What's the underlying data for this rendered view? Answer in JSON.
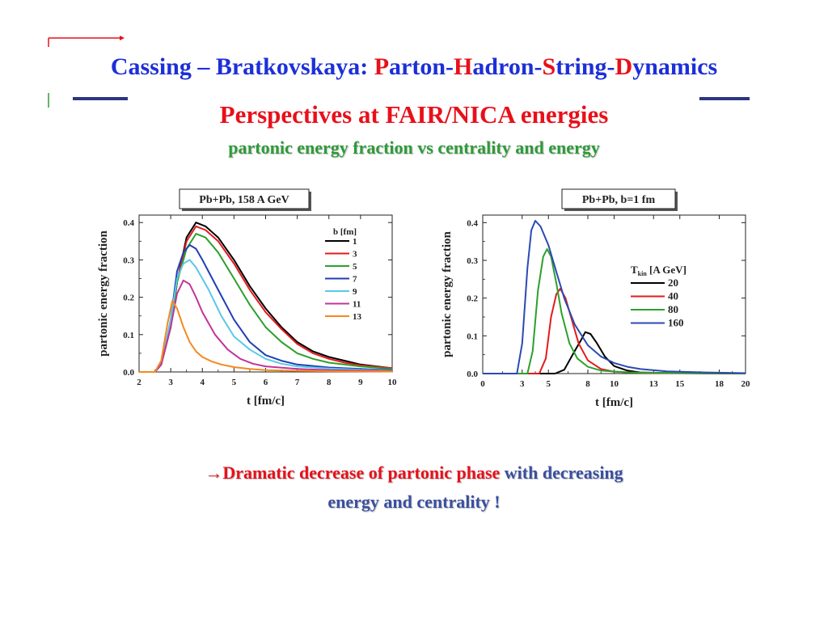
{
  "title": {
    "prefix": "Cassing – Bratkovskaya: ",
    "parts": [
      {
        "initial": "P",
        "rest": "arton-"
      },
      {
        "initial": "H",
        "rest": "adron-"
      },
      {
        "initial": "S",
        "rest": "tring-"
      },
      {
        "initial": "D",
        "rest": "ynamics"
      }
    ]
  },
  "subtitle1": "Perspectives at FAIR/NICA energies",
  "subtitle2": "partonic energy fraction vs centrality and energy",
  "conclusion": {
    "arrow": "→",
    "red": "Dramatic decrease of partonic phase",
    "blue": " with decreasing",
    "line2": "energy  and centrality !"
  },
  "colors": {
    "title_blue": "#1c2fd8",
    "title_red": "#e8101a",
    "green": "#2f9a3a",
    "dark_blue": "#3a4fa0"
  },
  "chart_data": [
    {
      "type": "line",
      "title": "Pb+Pb,  158 A GeV",
      "xlabel": "t [fm/c]",
      "ylabel": "partonic energy fraction",
      "xlim": [
        2,
        10
      ],
      "ylim": [
        0,
        0.42
      ],
      "xticks": [
        2,
        3,
        4,
        5,
        6,
        7,
        8,
        9,
        10
      ],
      "yticks": [
        0.0,
        0.1,
        0.2,
        0.3,
        0.4
      ],
      "legend_title": "b [fm]",
      "legend_position": "right",
      "series": [
        {
          "name": "1",
          "color": "#000000",
          "x": [
            2.0,
            2.5,
            2.7,
            3.0,
            3.2,
            3.5,
            3.8,
            4.1,
            4.5,
            5.0,
            5.5,
            6.0,
            6.5,
            7.0,
            7.5,
            8.0,
            8.5,
            9.0,
            10.0
          ],
          "y": [
            0.0,
            0.0,
            0.02,
            0.12,
            0.24,
            0.36,
            0.4,
            0.39,
            0.36,
            0.3,
            0.23,
            0.17,
            0.12,
            0.08,
            0.055,
            0.04,
            0.03,
            0.02,
            0.01
          ]
        },
        {
          "name": "3",
          "color": "#e31a1c",
          "x": [
            2.0,
            2.5,
            2.7,
            3.0,
            3.2,
            3.5,
            3.8,
            4.1,
            4.5,
            5.0,
            5.5,
            6.0,
            6.5,
            7.0,
            7.5,
            8.0,
            8.5,
            9.0,
            10.0
          ],
          "y": [
            0.0,
            0.0,
            0.02,
            0.12,
            0.24,
            0.35,
            0.39,
            0.38,
            0.35,
            0.29,
            0.22,
            0.16,
            0.115,
            0.075,
            0.05,
            0.035,
            0.025,
            0.018,
            0.01
          ]
        },
        {
          "name": "5",
          "color": "#2ca02c",
          "x": [
            2.0,
            2.5,
            2.7,
            3.0,
            3.2,
            3.5,
            3.8,
            4.1,
            4.5,
            5.0,
            5.5,
            6.0,
            6.5,
            7.0,
            7.5,
            8.0,
            9.0,
            10.0
          ],
          "y": [
            0.0,
            0.0,
            0.02,
            0.12,
            0.24,
            0.33,
            0.37,
            0.36,
            0.32,
            0.25,
            0.18,
            0.12,
            0.08,
            0.05,
            0.035,
            0.025,
            0.015,
            0.008
          ]
        },
        {
          "name": "7",
          "color": "#1f3fb4",
          "x": [
            2.0,
            2.5,
            2.7,
            3.0,
            3.2,
            3.4,
            3.6,
            3.8,
            4.0,
            4.5,
            5.0,
            5.5,
            6.0,
            6.5,
            7.0,
            8.0,
            9.0,
            10.0
          ],
          "y": [
            0.0,
            0.0,
            0.02,
            0.14,
            0.27,
            0.32,
            0.34,
            0.33,
            0.3,
            0.22,
            0.14,
            0.08,
            0.045,
            0.03,
            0.02,
            0.012,
            0.008,
            0.005
          ]
        },
        {
          "name": "9",
          "color": "#5bc8e6",
          "x": [
            2.0,
            2.5,
            2.7,
            3.0,
            3.2,
            3.4,
            3.6,
            3.8,
            4.2,
            4.6,
            5.0,
            5.5,
            6.0,
            6.5,
            7.0,
            8.0,
            9.0,
            10.0
          ],
          "y": [
            0.0,
            0.0,
            0.02,
            0.14,
            0.25,
            0.29,
            0.3,
            0.28,
            0.22,
            0.15,
            0.095,
            0.06,
            0.035,
            0.022,
            0.015,
            0.009,
            0.006,
            0.004
          ]
        },
        {
          "name": "11",
          "color": "#c0359a",
          "x": [
            2.0,
            2.5,
            2.7,
            3.0,
            3.2,
            3.4,
            3.6,
            3.8,
            4.0,
            4.4,
            4.8,
            5.2,
            5.6,
            6.0,
            7.0,
            8.0,
            9.0,
            10.0
          ],
          "y": [
            0.0,
            0.0,
            0.02,
            0.12,
            0.21,
            0.245,
            0.235,
            0.2,
            0.16,
            0.1,
            0.06,
            0.035,
            0.022,
            0.015,
            0.008,
            0.005,
            0.004,
            0.003
          ]
        },
        {
          "name": "13",
          "color": "#f5891f",
          "x": [
            2.0,
            2.5,
            2.7,
            2.9,
            3.05,
            3.2,
            3.4,
            3.6,
            3.8,
            4.0,
            4.3,
            4.6,
            5.0,
            5.5,
            6.0,
            7.0,
            8.0,
            10.0
          ],
          "y": [
            0.0,
            0.0,
            0.03,
            0.13,
            0.19,
            0.17,
            0.12,
            0.08,
            0.055,
            0.04,
            0.028,
            0.02,
            0.013,
            0.008,
            0.005,
            0.003,
            0.002,
            0.001
          ]
        }
      ]
    },
    {
      "type": "line",
      "title": "Pb+Pb, b=1 fm",
      "xlabel": "t [fm/c]",
      "ylabel": "partonic energy fraction",
      "xlim": [
        0,
        20
      ],
      "ylim": [
        0,
        0.42
      ],
      "xticks": [
        0,
        3,
        5,
        8,
        10,
        13,
        15,
        18,
        20
      ],
      "yticks": [
        0.0,
        0.1,
        0.2,
        0.3,
        0.4
      ],
      "legend_title": "T",
      "legend_title_sub": "kin",
      "legend_title_rest": " [A GeV]",
      "legend_position": "right",
      "series": [
        {
          "name": "20",
          "color": "#000000",
          "x": [
            0,
            5.5,
            6.2,
            7.0,
            7.5,
            7.8,
            8.2,
            8.7,
            9.3,
            10.0,
            11.0,
            12.0,
            14.0,
            20.0
          ],
          "y": [
            0.0,
            0.0,
            0.01,
            0.06,
            0.09,
            0.11,
            0.105,
            0.08,
            0.045,
            0.02,
            0.008,
            0.003,
            0.001,
            0.0
          ]
        },
        {
          "name": "40",
          "color": "#e31a1c",
          "x": [
            0,
            4.3,
            4.8,
            5.2,
            5.6,
            5.9,
            6.3,
            6.8,
            7.3,
            8.0,
            9.0,
            10.0,
            12.0,
            20.0
          ],
          "y": [
            0.0,
            0.0,
            0.04,
            0.15,
            0.21,
            0.225,
            0.2,
            0.14,
            0.08,
            0.035,
            0.012,
            0.005,
            0.002,
            0.0
          ]
        },
        {
          "name": "80",
          "color": "#2ca02c",
          "x": [
            0,
            3.4,
            3.8,
            4.2,
            4.6,
            4.9,
            5.2,
            5.6,
            6.0,
            6.6,
            7.2,
            8.0,
            9.0,
            11.0,
            20.0
          ],
          "y": [
            0.0,
            0.0,
            0.06,
            0.22,
            0.31,
            0.33,
            0.31,
            0.24,
            0.16,
            0.08,
            0.04,
            0.018,
            0.008,
            0.003,
            0.0
          ]
        },
        {
          "name": "160",
          "color": "#2b4ab3",
          "x": [
            0,
            2.6,
            3.0,
            3.4,
            3.7,
            4.0,
            4.4,
            5.0,
            5.6,
            6.2,
            7.0,
            8.0,
            9.0,
            10.0,
            11.0,
            12.0,
            14.0,
            17.0,
            20.0
          ],
          "y": [
            0.0,
            0.0,
            0.08,
            0.28,
            0.38,
            0.405,
            0.39,
            0.34,
            0.27,
            0.2,
            0.13,
            0.075,
            0.045,
            0.028,
            0.018,
            0.012,
            0.006,
            0.003,
            0.001
          ]
        }
      ]
    }
  ]
}
